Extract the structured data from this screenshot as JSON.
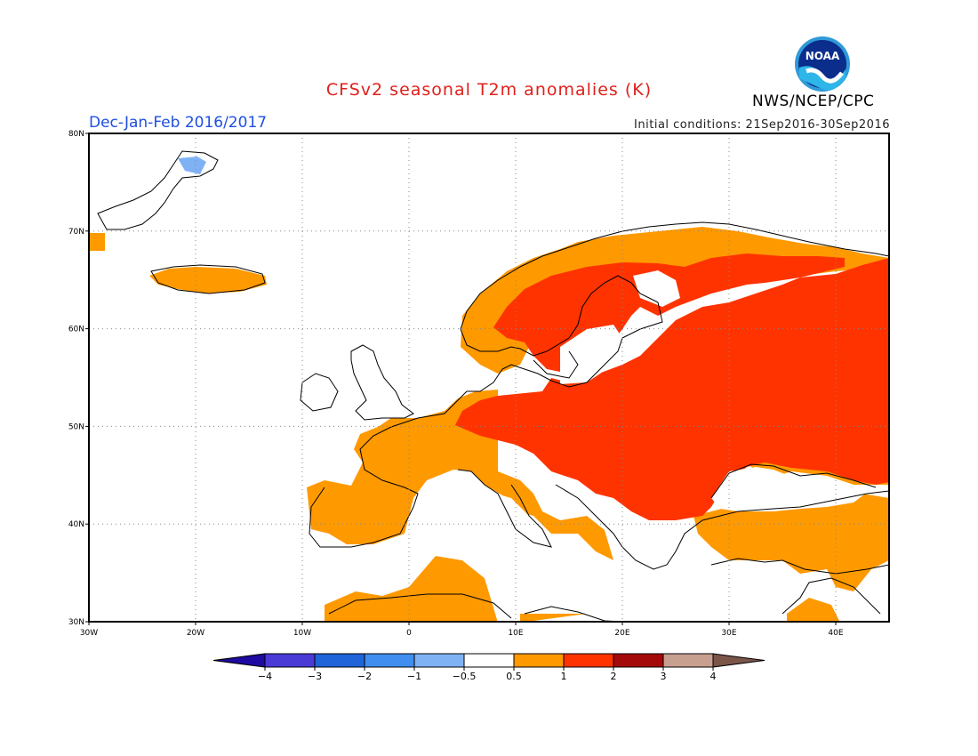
{
  "header": {
    "title": "CFSv2 seasonal T2m anomalies (K)",
    "period": "Dec-Jan-Feb 2016/2017",
    "initial_conditions": "Initial conditions: 21Sep2016-30Sep2016",
    "agency": "NWS/NCEP/CPC",
    "logo_text": "NOAA"
  },
  "map": {
    "lon_range": [
      -30,
      45
    ],
    "lat_range": [
      30,
      80
    ],
    "lon_ticks": [
      {
        "value": -30,
        "label": "30W"
      },
      {
        "value": -20,
        "label": "20W"
      },
      {
        "value": -10,
        "label": "10W"
      },
      {
        "value": 0,
        "label": "0"
      },
      {
        "value": 10,
        "label": "10E"
      },
      {
        "value": 20,
        "label": "20E"
      },
      {
        "value": 30,
        "label": "30E"
      },
      {
        "value": 40,
        "label": "40E"
      }
    ],
    "lat_ticks": [
      {
        "value": 80,
        "label": "80N"
      },
      {
        "value": 70,
        "label": "70N"
      },
      {
        "value": 60,
        "label": "60N"
      },
      {
        "value": 50,
        "label": "50N"
      },
      {
        "value": 40,
        "label": "40N"
      },
      {
        "value": 30,
        "label": "30N"
      }
    ],
    "grid": "dotted",
    "anomaly_regions": [
      {
        "name": "eastern-europe-russia",
        "level": "1 to 2",
        "color": "#ff3300"
      },
      {
        "name": "scandinavia-interior",
        "level": "1 to 2",
        "color": "#ff3300"
      },
      {
        "name": "western-europe",
        "level": "0.5 to 1",
        "color": "#ff9900"
      },
      {
        "name": "iberia",
        "level": "0.5 to 1",
        "color": "#ff9900"
      },
      {
        "name": "north-africa",
        "level": "0.5 to 1",
        "color": "#ff9900"
      },
      {
        "name": "iceland",
        "level": "0.5 to 1",
        "color": "#ff9900"
      },
      {
        "name": "svalbard",
        "level": "-1 to -0.5",
        "color": "#7fb2f5"
      },
      {
        "name": "turkey",
        "level": "0.5 to 1",
        "color": "#ff9900"
      }
    ]
  },
  "legend": {
    "bins": [
      {
        "color": "#1e0aa0",
        "ends_arrow": true
      },
      {
        "color": "#4a3ad6"
      },
      {
        "color": "#1f64d8"
      },
      {
        "color": "#3f8ef0"
      },
      {
        "color": "#7fb2f5"
      },
      {
        "color": "#ffffff"
      },
      {
        "color": "#ff9900"
      },
      {
        "color": "#ff3300"
      },
      {
        "color": "#a50a0a"
      },
      {
        "color": "#c8a090"
      },
      {
        "color": "#7a5548",
        "ends_arrow": true
      }
    ],
    "labels": [
      "-4",
      "-3",
      "-2",
      "-1",
      "-0.5",
      "0.5",
      "1",
      "2",
      "3",
      "4"
    ]
  }
}
